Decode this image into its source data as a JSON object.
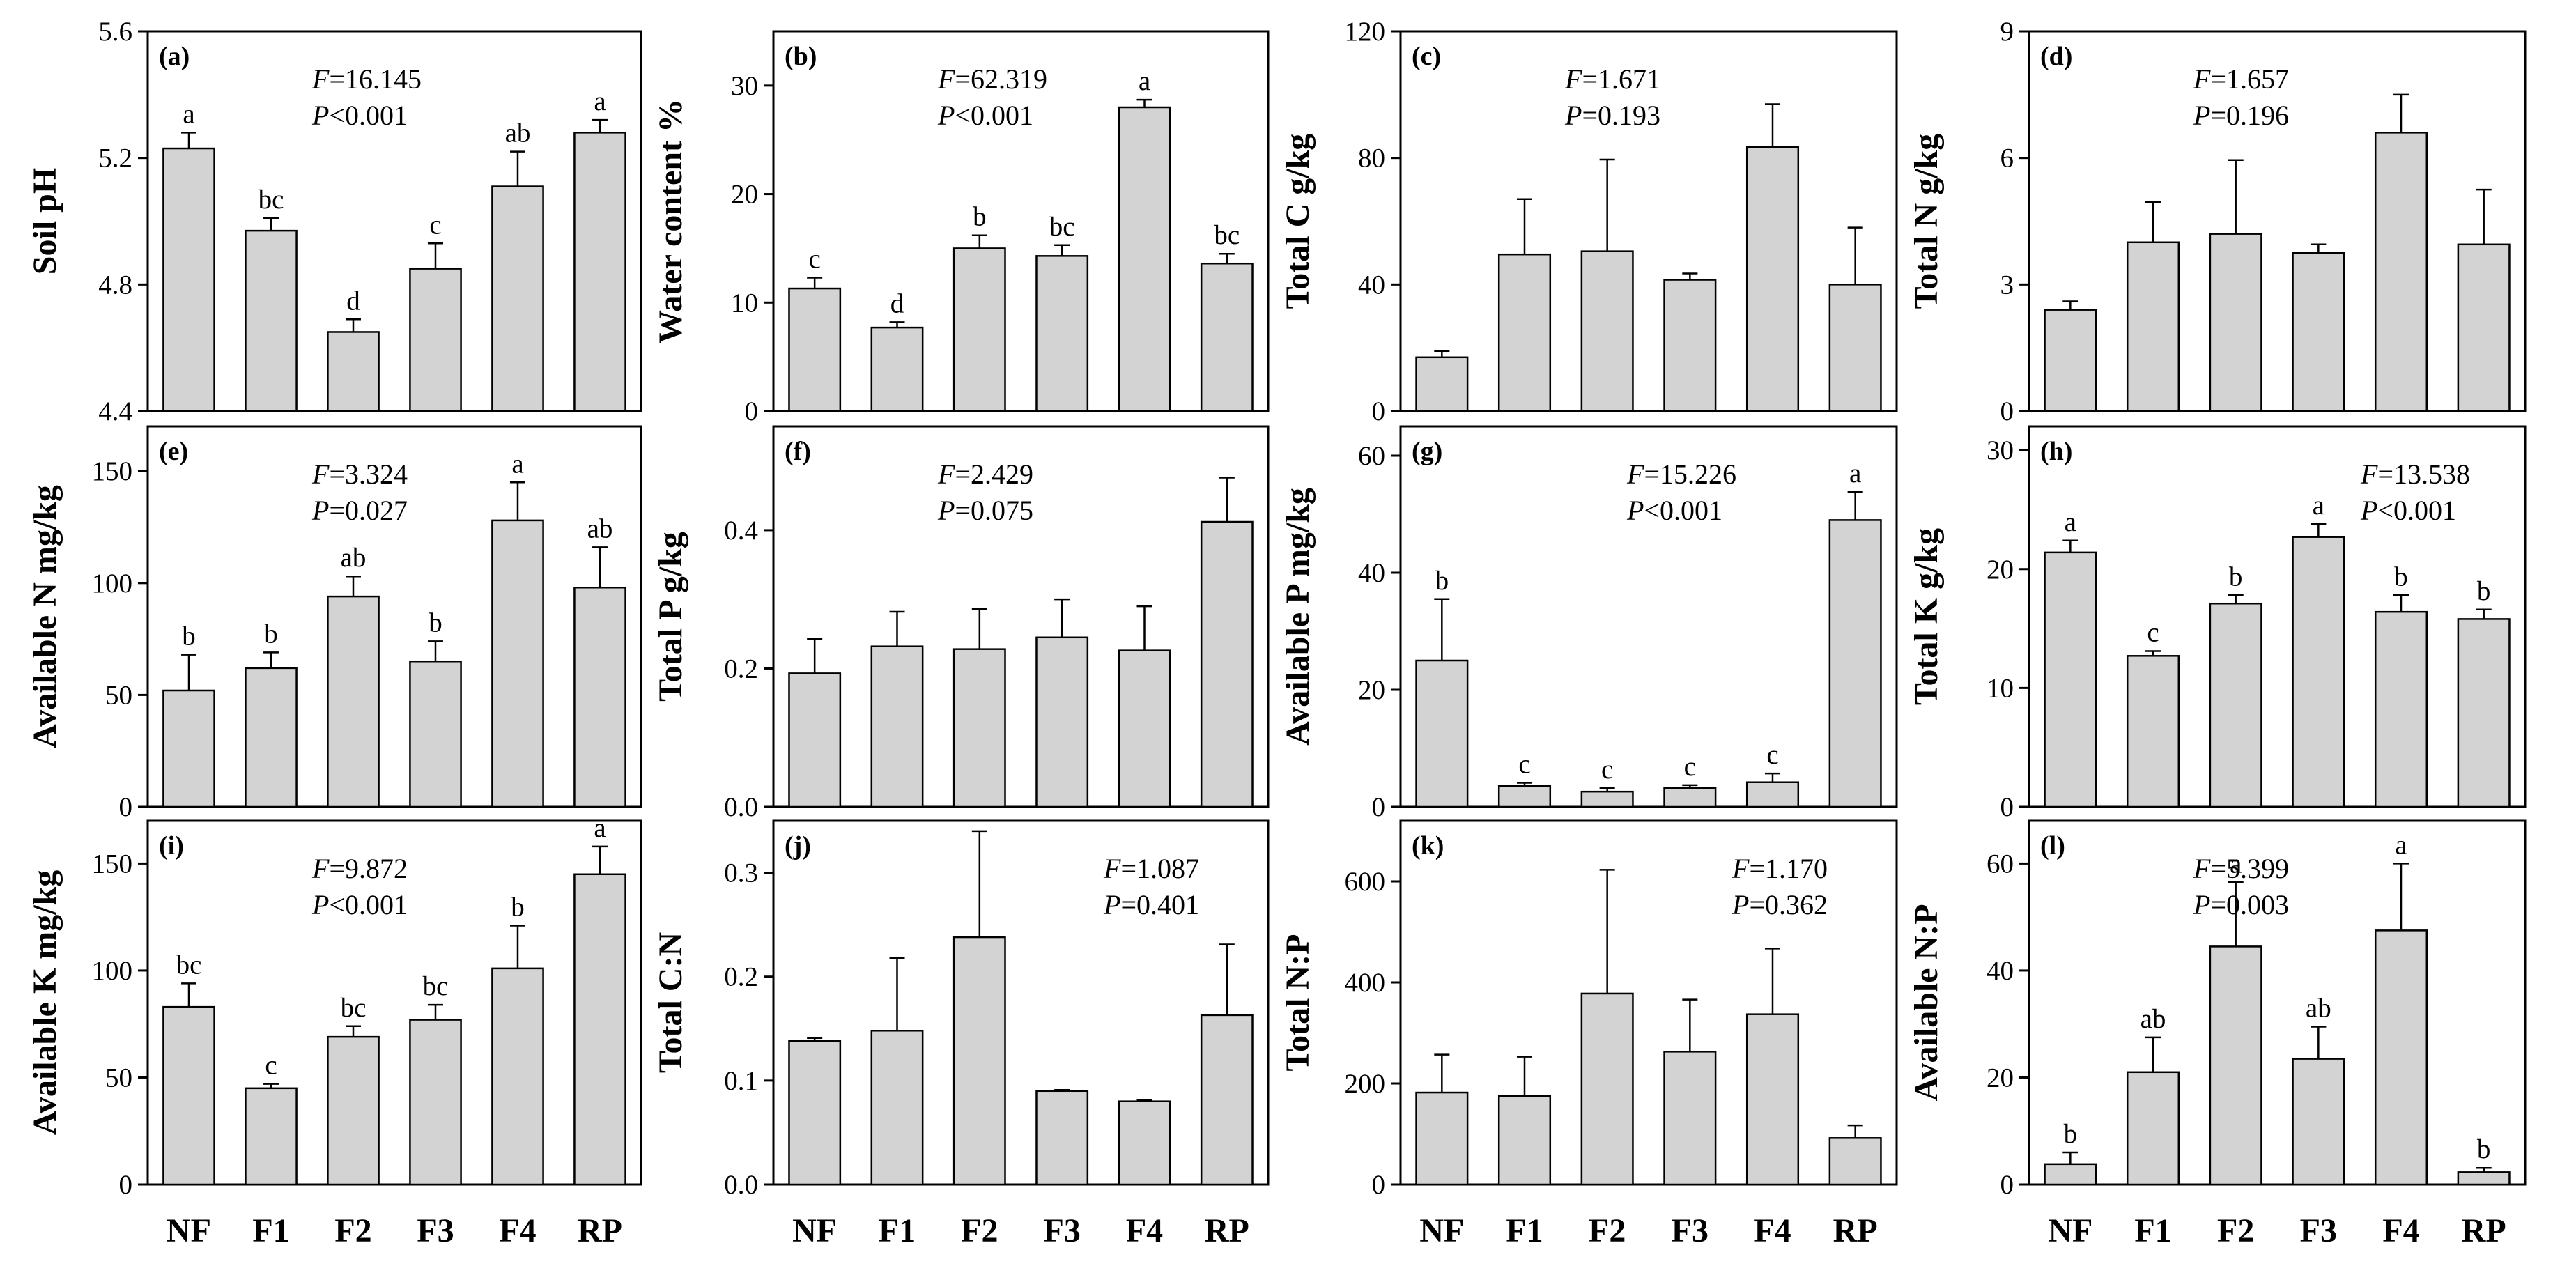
{
  "categories": [
    "NF",
    "F1",
    "F2",
    "F3",
    "F4",
    "RP"
  ],
  "colors": {
    "bar_fill": "#d3d3d3",
    "stroke": "#000000",
    "background": "#ffffff"
  },
  "chart_data": [
    {
      "panel": "(a)",
      "type": "bar",
      "ylabel": "Soil pH",
      "ylim": [
        4.4,
        5.6
      ],
      "ticks": [
        "4.4",
        "4.8",
        "5.2",
        "5.6"
      ],
      "values": [
        5.23,
        4.97,
        4.65,
        4.85,
        5.11,
        5.28
      ],
      "errors": [
        0.05,
        0.04,
        0.04,
        0.08,
        0.11,
        0.04
      ],
      "letters": [
        "a",
        "bc",
        "d",
        "c",
        "ab",
        "a"
      ],
      "stat_F": "=16.145",
      "stat_P": "<0.001",
      "stat_pos": "left"
    },
    {
      "panel": "(b)",
      "type": "bar",
      "ylabel": "Water content %",
      "ylim": [
        0,
        35
      ],
      "ticks": [
        "0",
        "10",
        "20",
        "30"
      ],
      "values": [
        11.3,
        7.7,
        15.0,
        14.3,
        28.0,
        13.6
      ],
      "errors": [
        1.0,
        0.5,
        1.2,
        1.0,
        0.7,
        0.9
      ],
      "letters": [
        "c",
        "d",
        "b",
        "bc",
        "a",
        "bc"
      ],
      "stat_F": "=62.319",
      "stat_P": "<0.001",
      "stat_pos": "left"
    },
    {
      "panel": "(c)",
      "type": "bar",
      "ylabel": "Total C g/kg",
      "ylim": [
        0,
        120
      ],
      "ticks": [
        "0",
        "40",
        "80",
        "120"
      ],
      "values": [
        17,
        49.5,
        50.5,
        41.5,
        83.5,
        40
      ],
      "errors": [
        2,
        17.5,
        29,
        2,
        13.5,
        18
      ],
      "letters": [
        "",
        "",
        "",
        "",
        "",
        ""
      ],
      "stat_F": "=1.671",
      "stat_P": "=0.193",
      "stat_pos": "left"
    },
    {
      "panel": "(d)",
      "type": "bar",
      "ylabel": "Total N g/kg",
      "ylim": [
        0,
        9
      ],
      "ticks": [
        "0",
        "3",
        "6",
        "9"
      ],
      "values": [
        2.4,
        4.0,
        4.2,
        3.75,
        6.6,
        3.95
      ],
      "errors": [
        0.2,
        0.95,
        1.75,
        0.2,
        0.9,
        1.3
      ],
      "letters": [
        "",
        "",
        "",
        "",
        "",
        ""
      ],
      "stat_F": "=1.657",
      "stat_P": "=0.196",
      "stat_pos": "left"
    },
    {
      "panel": "(e)",
      "type": "bar",
      "ylabel": "Available N mg/kg",
      "ylim": [
        0,
        170
      ],
      "ticks": [
        "0",
        "50",
        "100",
        "150"
      ],
      "values": [
        52,
        62,
        94,
        65,
        128,
        98
      ],
      "errors": [
        16,
        7,
        9,
        9,
        17,
        18
      ],
      "letters": [
        "b",
        "b",
        "ab",
        "b",
        "a",
        "ab"
      ],
      "stat_F": "=3.324",
      "stat_P": "=0.027",
      "stat_pos": "left"
    },
    {
      "panel": "(f)",
      "type": "bar",
      "ylabel": "Total P g/kg",
      "ylim": [
        0,
        0.55
      ],
      "ticks": [
        "0.0",
        "0.2",
        "0.4"
      ],
      "values": [
        0.193,
        0.232,
        0.228,
        0.245,
        0.226,
        0.412
      ],
      "errors": [
        0.05,
        0.05,
        0.058,
        0.055,
        0.064,
        0.064
      ],
      "letters": [
        "",
        "",
        "",
        "",
        "",
        ""
      ],
      "stat_F": "=2.429",
      "stat_P": "=0.075",
      "stat_pos": "left"
    },
    {
      "panel": "(g)",
      "type": "bar",
      "ylabel": "Available P mg/kg",
      "ylim": [
        0,
        65
      ],
      "ticks": [
        "0",
        "20",
        "40",
        "60"
      ],
      "values": [
        25,
        3.6,
        2.6,
        3.2,
        4.2,
        49
      ],
      "errors": [
        10.5,
        0.5,
        0.6,
        0.5,
        1.5,
        4.8
      ],
      "letters": [
        "b",
        "c",
        "c",
        "c",
        "c",
        "a"
      ],
      "stat_F": "=15.226",
      "stat_P": "<0.001",
      "stat_pos": "center"
    },
    {
      "panel": "(h)",
      "type": "bar",
      "ylabel": "Total K g/kg",
      "ylim": [
        0,
        32
      ],
      "ticks": [
        "0",
        "10",
        "20",
        "30"
      ],
      "values": [
        21.4,
        12.7,
        17.1,
        22.7,
        16.4,
        15.8
      ],
      "errors": [
        1.0,
        0.4,
        0.7,
        1.1,
        1.4,
        0.8
      ],
      "letters": [
        "a",
        "c",
        "b",
        "a",
        "b",
        "b"
      ],
      "stat_F": "=13.538",
      "stat_P": "<0.001",
      "stat_pos": "right"
    },
    {
      "panel": "(i)",
      "type": "bar",
      "ylabel": "Available K mg/kg",
      "ylim": [
        0,
        170
      ],
      "ticks": [
        "0",
        "50",
        "100",
        "150"
      ],
      "values": [
        83,
        45,
        69,
        77,
        101,
        145
      ],
      "errors": [
        11,
        2,
        5,
        7,
        20,
        13
      ],
      "letters": [
        "bc",
        "c",
        "bc",
        "bc",
        "b",
        "a"
      ],
      "stat_F": "=9.872",
      "stat_P": "<0.001",
      "stat_pos": "left"
    },
    {
      "panel": "(j)",
      "type": "bar",
      "ylabel": "Total C:N",
      "ylim": [
        0,
        0.35
      ],
      "ticks": [
        "0.0",
        "0.1",
        "0.2",
        "0.3"
      ],
      "values": [
        0.138,
        0.148,
        0.238,
        0.09,
        0.08,
        0.163
      ],
      "errors": [
        0.003,
        0.07,
        0.102,
        0.001,
        0.001,
        0.068
      ],
      "letters": [
        "",
        "",
        "",
        "",
        "",
        ""
      ],
      "stat_F": "=1.087",
      "stat_P": "=0.401",
      "stat_pos": "right"
    },
    {
      "panel": "(k)",
      "type": "bar",
      "ylabel": "Total N:P",
      "ylim": [
        0,
        720
      ],
      "ticks": [
        "0",
        "200",
        "400",
        "600"
      ],
      "values": [
        182,
        175,
        378,
        263,
        337,
        92
      ],
      "errors": [
        75,
        78,
        245,
        103,
        130,
        25
      ],
      "letters": [
        "",
        "",
        "",
        "",
        "",
        ""
      ],
      "stat_F": "=1.170",
      "stat_P": "=0.362",
      "stat_pos": "right"
    },
    {
      "panel": "(l)",
      "type": "bar",
      "ylabel": "Available N:P",
      "ylim": [
        0,
        68
      ],
      "ticks": [
        "0",
        "20",
        "40",
        "60"
      ],
      "values": [
        3.8,
        21,
        44.5,
        23.5,
        47.5,
        2.3
      ],
      "errors": [
        2.2,
        6.5,
        12,
        6,
        12.5,
        0.8
      ],
      "letters": [
        "b",
        "ab",
        "a",
        "ab",
        "a",
        "b"
      ],
      "stat_F": "=5.399",
      "stat_P": "=0.003",
      "stat_pos": "left"
    }
  ]
}
